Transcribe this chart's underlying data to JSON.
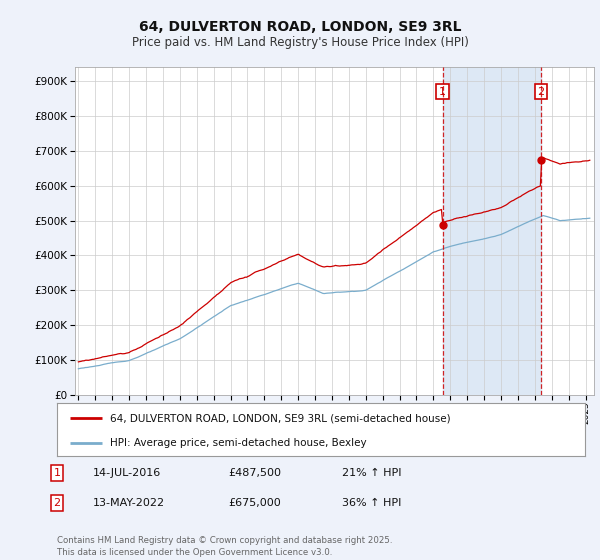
{
  "title": "64, DULVERTON ROAD, LONDON, SE9 3RL",
  "subtitle": "Price paid vs. HM Land Registry's House Price Index (HPI)",
  "ytick_values": [
    0,
    100000,
    200000,
    300000,
    400000,
    500000,
    600000,
    700000,
    800000,
    900000
  ],
  "ylim": [
    0,
    940000
  ],
  "xlim_start": 1994.8,
  "xlim_end": 2025.5,
  "line1_color": "#cc0000",
  "line2_color": "#7aadcc",
  "vline_color": "#cc0000",
  "shade_color": "#dde8f5",
  "transaction1_x": 2016.54,
  "transaction2_x": 2022.37,
  "transaction1_y": 487500,
  "transaction2_y": 675000,
  "legend_line1": "64, DULVERTON ROAD, LONDON, SE9 3RL (semi-detached house)",
  "legend_line2": "HPI: Average price, semi-detached house, Bexley",
  "table_row1": [
    "1",
    "14-JUL-2016",
    "£487,500",
    "21% ↑ HPI"
  ],
  "table_row2": [
    "2",
    "13-MAY-2022",
    "£675,000",
    "36% ↑ HPI"
  ],
  "footer": "Contains HM Land Registry data © Crown copyright and database right 2025.\nThis data is licensed under the Open Government Licence v3.0.",
  "background_color": "#eef2fa",
  "plot_bg_color": "#ffffff",
  "grid_color": "#cccccc"
}
